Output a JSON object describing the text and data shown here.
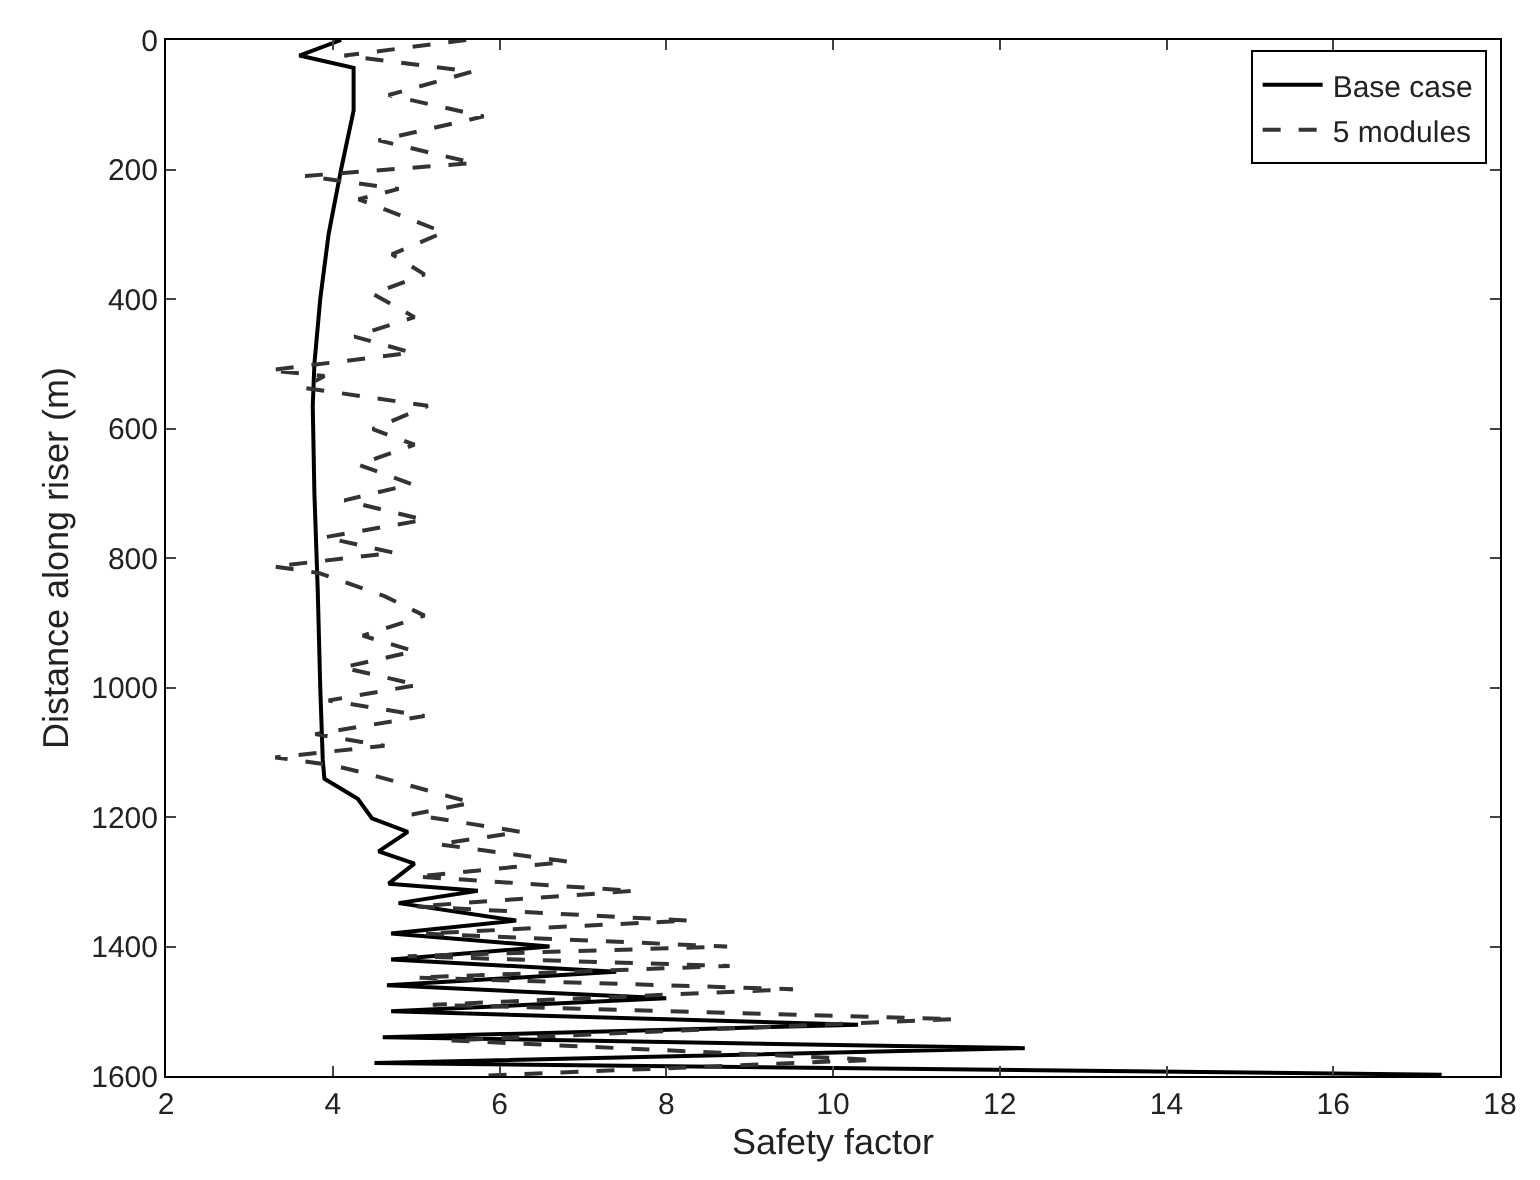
{
  "chart_data": {
    "type": "line",
    "xlabel": "Safety factor",
    "ylabel": "Distance along riser (m)",
    "xlim": [
      2,
      18
    ],
    "xticks": [
      2,
      4,
      6,
      8,
      10,
      12,
      14,
      16,
      18
    ],
    "ylim": [
      1600,
      0
    ],
    "yticks": [
      0,
      200,
      400,
      600,
      800,
      1000,
      1200,
      1400,
      1600
    ],
    "grid": false,
    "legend": "top right",
    "marker": "none",
    "series": [
      {
        "name": "Base case",
        "color": "#000000",
        "line_style": "solid",
        "x": [
          4.1,
          3.6,
          4.25,
          4.25,
          4.1,
          3.95,
          3.85,
          3.78,
          3.76,
          3.78,
          3.82,
          3.85,
          3.88,
          3.9,
          4.3,
          4.47,
          4.9,
          4.55,
          4.98,
          4.67,
          5.74,
          4.79,
          6.2,
          4.7,
          6.6,
          4.7,
          7.4,
          4.65,
          8.0,
          4.7,
          10.3,
          4.6,
          12.3,
          4.5,
          17.3
        ],
        "values": [
          0,
          24,
          43,
          109,
          200,
          300,
          400,
          500,
          565,
          700,
          850,
          1000,
          1111,
          1141,
          1172,
          1202,
          1223,
          1253,
          1272,
          1303,
          1314,
          1333,
          1360,
          1380,
          1400,
          1420,
          1439,
          1460,
          1480,
          1500,
          1521,
          1540,
          1557,
          1580,
          1598
        ]
      },
      {
        "name": "5 modules",
        "color": "#333333",
        "line_style": "dashed",
        "x": [
          5.6,
          4.14,
          5.67,
          4.67,
          5.81,
          4.55,
          5.69,
          3.67,
          4.79,
          4.31,
          5.33,
          4.71,
          5.1,
          4.48,
          4.98,
          4.26,
          4.95,
          3.24,
          3.9,
          3.64,
          5.14,
          4.48,
          4.98,
          4.31,
          4.95,
          4.14,
          5.1,
          3.9,
          4.74,
          3.29,
          3.83,
          4.62,
          5.1,
          4.36,
          4.98,
          4.12,
          5.02,
          3.95,
          5.1,
          3.79,
          4.62,
          3.31,
          4.0,
          4.38,
          5.67,
          4.95,
          6.26,
          5.26,
          6.83,
          5.0,
          7.62,
          5.0,
          8.28,
          5.1,
          8.73,
          4.9,
          8.76,
          5.0,
          9.52,
          5.2,
          11.46,
          5.4,
          10.5,
          5.7
        ],
        "values": [
          0,
          24,
          49,
          85,
          118,
          155,
          190,
          210,
          230,
          246,
          297,
          331,
          362,
          392,
          428,
          458,
          483,
          510,
          519,
          537,
          565,
          601,
          625,
          656,
          686,
          711,
          741,
          768,
          792,
          813,
          823,
          859,
          889,
          920,
          944,
          969,
          996,
          1020,
          1044,
          1072,
          1090,
          1108,
          1120,
          1132,
          1178,
          1196,
          1223,
          1242,
          1269,
          1292,
          1314,
          1338,
          1360,
          1380,
          1400,
          1415,
          1430,
          1448,
          1466,
          1490,
          1512,
          1545,
          1575,
          1600
        ]
      }
    ]
  }
}
